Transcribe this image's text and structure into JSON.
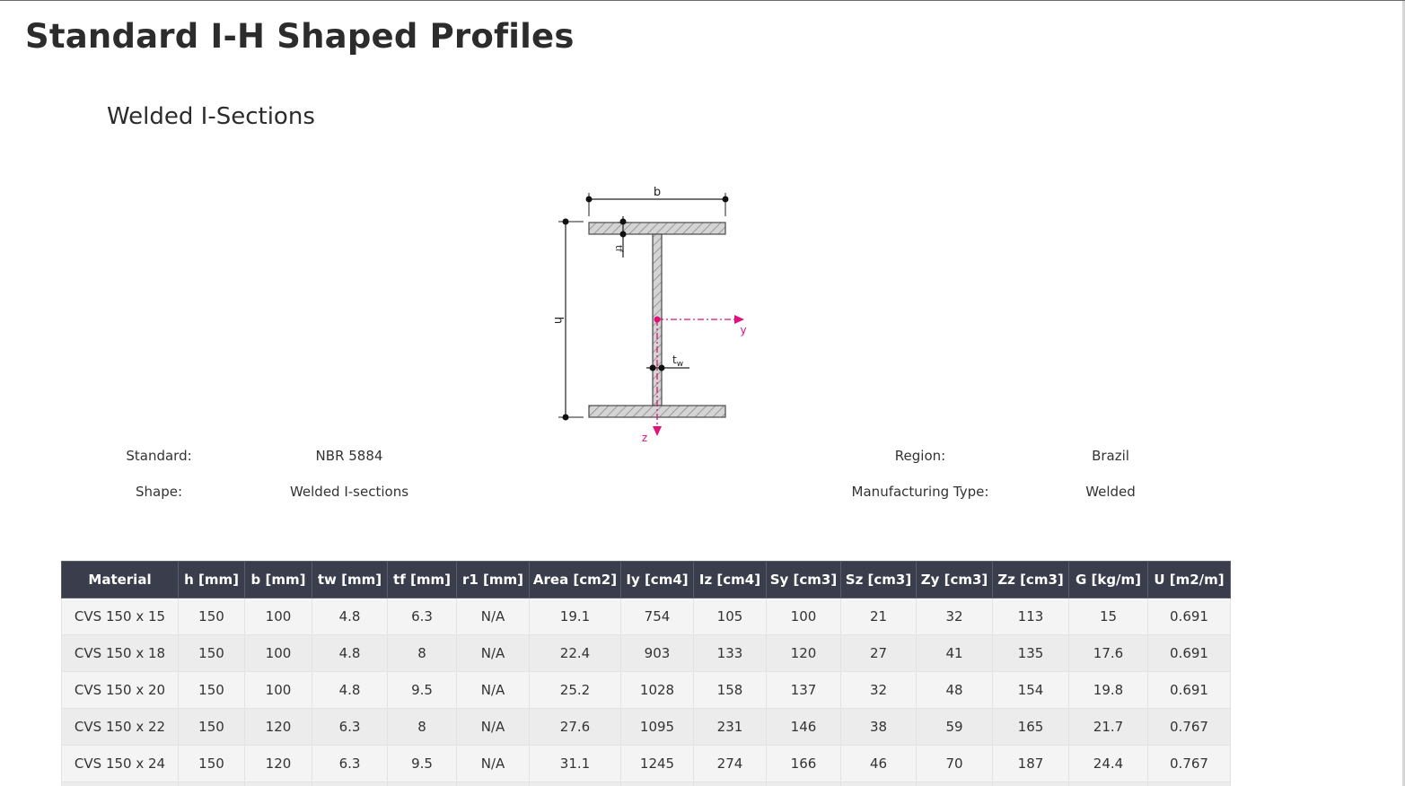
{
  "page": {
    "title": "Standard I-H Shaped Profiles",
    "subtitle": "Welded I-Sections"
  },
  "diagram": {
    "label_b": "b",
    "label_h": "h",
    "label_tf": "tf",
    "label_tw": "t",
    "label_tw_sub": "w",
    "label_y": "y",
    "label_z": "z",
    "axis_color": "#e0117a"
  },
  "info": {
    "standard_label": "Standard:",
    "standard_value": "NBR 5884",
    "shape_label": "Shape:",
    "shape_value": "Welded I-sections",
    "region_label": "Region:",
    "region_value": "Brazil",
    "manufacturing_label": "Manufacturing Type:",
    "manufacturing_value": "Welded"
  },
  "table": {
    "headers": [
      "Material",
      "h [mm]",
      "b [mm]",
      "tw [mm]",
      "tf [mm]",
      "r1 [mm]",
      "Area [cm2]",
      "Iy [cm4]",
      "Iz [cm4]",
      "Sy [cm3]",
      "Sz [cm3]",
      "Zy [cm3]",
      "Zz [cm3]",
      "G [kg/m]",
      "U [m2/m]"
    ],
    "rows": [
      [
        "CVS 150 x 15",
        "150",
        "100",
        "4.8",
        "6.3",
        "N/A",
        "19.1",
        "754",
        "105",
        "100",
        "21",
        "32",
        "113",
        "15",
        "0.691"
      ],
      [
        "CVS 150 x 18",
        "150",
        "100",
        "4.8",
        "8",
        "N/A",
        "22.4",
        "903",
        "133",
        "120",
        "27",
        "41",
        "135",
        "17.6",
        "0.691"
      ],
      [
        "CVS 150 x 20",
        "150",
        "100",
        "4.8",
        "9.5",
        "N/A",
        "25.2",
        "1028",
        "158",
        "137",
        "32",
        "48",
        "154",
        "19.8",
        "0.691"
      ],
      [
        "CVS 150 x 22",
        "150",
        "120",
        "6.3",
        "8",
        "N/A",
        "27.6",
        "1095",
        "231",
        "146",
        "38",
        "59",
        "165",
        "21.7",
        "0.767"
      ],
      [
        "CVS 150 x 24",
        "150",
        "120",
        "6.3",
        "9.5",
        "N/A",
        "31.1",
        "1245",
        "274",
        "166",
        "46",
        "70",
        "187",
        "24.4",
        "0.767"
      ],
      [
        "",
        "",
        "",
        "",
        "",
        "",
        "",
        "",
        "",
        "",
        "",
        "",
        "",
        "",
        ""
      ]
    ]
  }
}
